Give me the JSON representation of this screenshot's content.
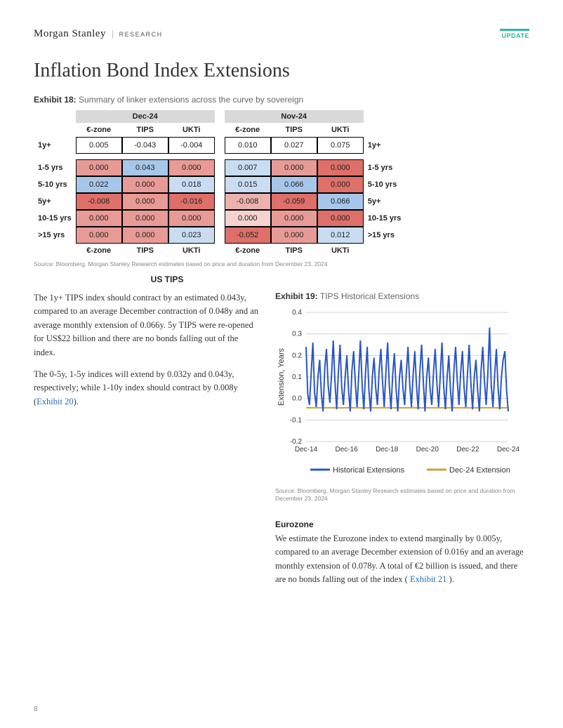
{
  "brand": {
    "name": "Morgan Stanley",
    "sub": "RESEARCH"
  },
  "badge": "UPDATE",
  "title": "Inflation Bond Index Extensions",
  "exhibit18": {
    "num": "Exhibit 18:",
    "caption": "Summary of linker extensions across the curve by sovereign",
    "periods": [
      "Dec-24",
      "Nov-24"
    ],
    "cols": [
      "€-zone",
      "TIPS",
      "UKTi"
    ],
    "rows": [
      "1y+",
      "1-5 yrs",
      "5-10 yrs",
      "5y+",
      "10-15 yrs",
      ">15 yrs"
    ],
    "dec": [
      [
        "0.005",
        "-0.043",
        "-0.004"
      ],
      [
        "0.000",
        "0.043",
        "0.000"
      ],
      [
        "0.022",
        "0.000",
        "0.018"
      ],
      [
        "-0.008",
        "0.000",
        "-0.016"
      ],
      [
        "0.000",
        "0.000",
        "0.000"
      ],
      [
        "0.000",
        "0.000",
        "0.023"
      ]
    ],
    "nov": [
      [
        "0.010",
        "0.027",
        "0.075"
      ],
      [
        "0.007",
        "0.000",
        "0.000"
      ],
      [
        "0.015",
        "0.066",
        "0.000"
      ],
      [
        "-0.008",
        "-0.059",
        "0.066"
      ],
      [
        "0.000",
        "0.000",
        "0.000"
      ],
      [
        "-0.052",
        "0.000",
        "0.012"
      ]
    ],
    "dec_colors": [
      [
        "#ffffff",
        "#ffffff",
        "#ffffff"
      ],
      [
        "#e89a96",
        "#a7c7ea",
        "#e89a96"
      ],
      [
        "#a7c7ea",
        "#e89a96",
        "#c9ddf2"
      ],
      [
        "#de6f69",
        "#e89a96",
        "#de6f69"
      ],
      [
        "#e89a96",
        "#e89a96",
        "#e89a96"
      ],
      [
        "#e89a96",
        "#e89a96",
        "#c9ddf2"
      ]
    ],
    "nov_colors": [
      [
        "#ffffff",
        "#ffffff",
        "#ffffff"
      ],
      [
        "#c9ddf2",
        "#e89a96",
        "#de6f69"
      ],
      [
        "#c9ddf2",
        "#a7c7ea",
        "#de6f69"
      ],
      [
        "#ecb2ae",
        "#de6f69",
        "#a7c7ea"
      ],
      [
        "#f3d2cf",
        "#e89a96",
        "#de6f69"
      ],
      [
        "#de6f69",
        "#e89a96",
        "#c9ddf2"
      ]
    ],
    "source": "Source: Bloomberg, Morgan Stanley Research estimates based on price and duration from December 23, 2024"
  },
  "section_us": "US TIPS",
  "para1a": "The 1y+ TIPS index should contract by an estimated 0.043y, compared to an average December contraction of 0.048y and an average monthly extension of 0.066y. 5y TIPS were re-opened for US$22 billion and there are no bonds falling out of the index.",
  "para2a": "The 0-5y, 1-5y indices will extend by 0.032y and 0.043y, respectively; while 1-10y index should contract by 0.008y (",
  "para2link": "Exhibit 20",
  "para2b": ").",
  "exhibit19": {
    "num": "Exhibit 19:",
    "caption": "TIPS Historical Extensions",
    "type": "line",
    "ylabel": "Extension, Years",
    "ylim": [
      -0.2,
      0.4
    ],
    "yticks": [
      -0.2,
      -0.1,
      0,
      0.1,
      0.2,
      0.3,
      0.4
    ],
    "xticks": [
      "Dec-14",
      "Dec-16",
      "Dec-18",
      "Dec-20",
      "Dec-22",
      "Dec-24"
    ],
    "series": [
      {
        "name": "Historical Extensions",
        "color": "#2a56c6",
        "width": 2
      },
      {
        "name": "Dec-24 Extension",
        "color": "#c9a33a",
        "width": 2,
        "value": -0.043
      }
    ],
    "hist_values": [
      0.24,
      0.02,
      -0.03,
      0.12,
      0.26,
      0.03,
      -0.04,
      0.1,
      0.18,
      0.02,
      -0.06,
      0.14,
      0.23,
      0.06,
      -0.02,
      0.11,
      0.27,
      0.08,
      -0.05,
      0.12,
      0.25,
      0.05,
      -0.03,
      0.1,
      0.2,
      0.04,
      -0.06,
      0.13,
      0.22,
      0.07,
      -0.04,
      0.11,
      0.27,
      0.06,
      -0.05,
      0.12,
      0.24,
      0.04,
      -0.06,
      0.1,
      0.19,
      0.05,
      -0.03,
      0.13,
      0.23,
      0.08,
      -0.04,
      0.12,
      0.26,
      0.06,
      -0.05,
      0.11,
      0.21,
      0.04,
      -0.06,
      0.1,
      0.18,
      0.05,
      -0.03,
      0.12,
      0.24,
      0.07,
      -0.04,
      0.11,
      0.22,
      0.06,
      -0.05,
      0.13,
      0.25,
      0.08,
      -0.06,
      0.1,
      0.19,
      0.04,
      -0.03,
      0.12,
      0.23,
      0.07,
      -0.04,
      0.11,
      0.26,
      0.06,
      -0.05,
      0.1,
      0.2,
      0.04,
      -0.06,
      0.13,
      0.24,
      0.08,
      -0.03,
      0.12,
      0.22,
      0.05,
      -0.04,
      0.11,
      0.25,
      0.07,
      -0.05,
      0.1,
      0.18,
      0.04,
      -0.06,
      0.13,
      0.24,
      0.08,
      -0.03,
      0.12,
      0.33,
      0.06,
      -0.04,
      0.11,
      0.23,
      0.05,
      -0.05,
      0.1,
      0.18,
      0.22,
      0.04,
      -0.06
    ],
    "grid_color": "#d0d0d0",
    "bg": "#ffffff",
    "axis_fontsize": 10,
    "source": "Source: Bloomberg, Morgan Stanley Research estimates based on price and duration from December 23, 2024"
  },
  "eurozone": {
    "head": "Eurozone",
    "body_a": "We estimate the Eurozone index to extend marginally by 0.005y, compared to an average December extension of 0.016y and an average monthly extension of 0.078y. A total of €2 billion is issued, and there are no bonds falling out of the index (",
    "link": " Exhibit 21 ",
    "body_b": ")."
  },
  "page_number": "8"
}
